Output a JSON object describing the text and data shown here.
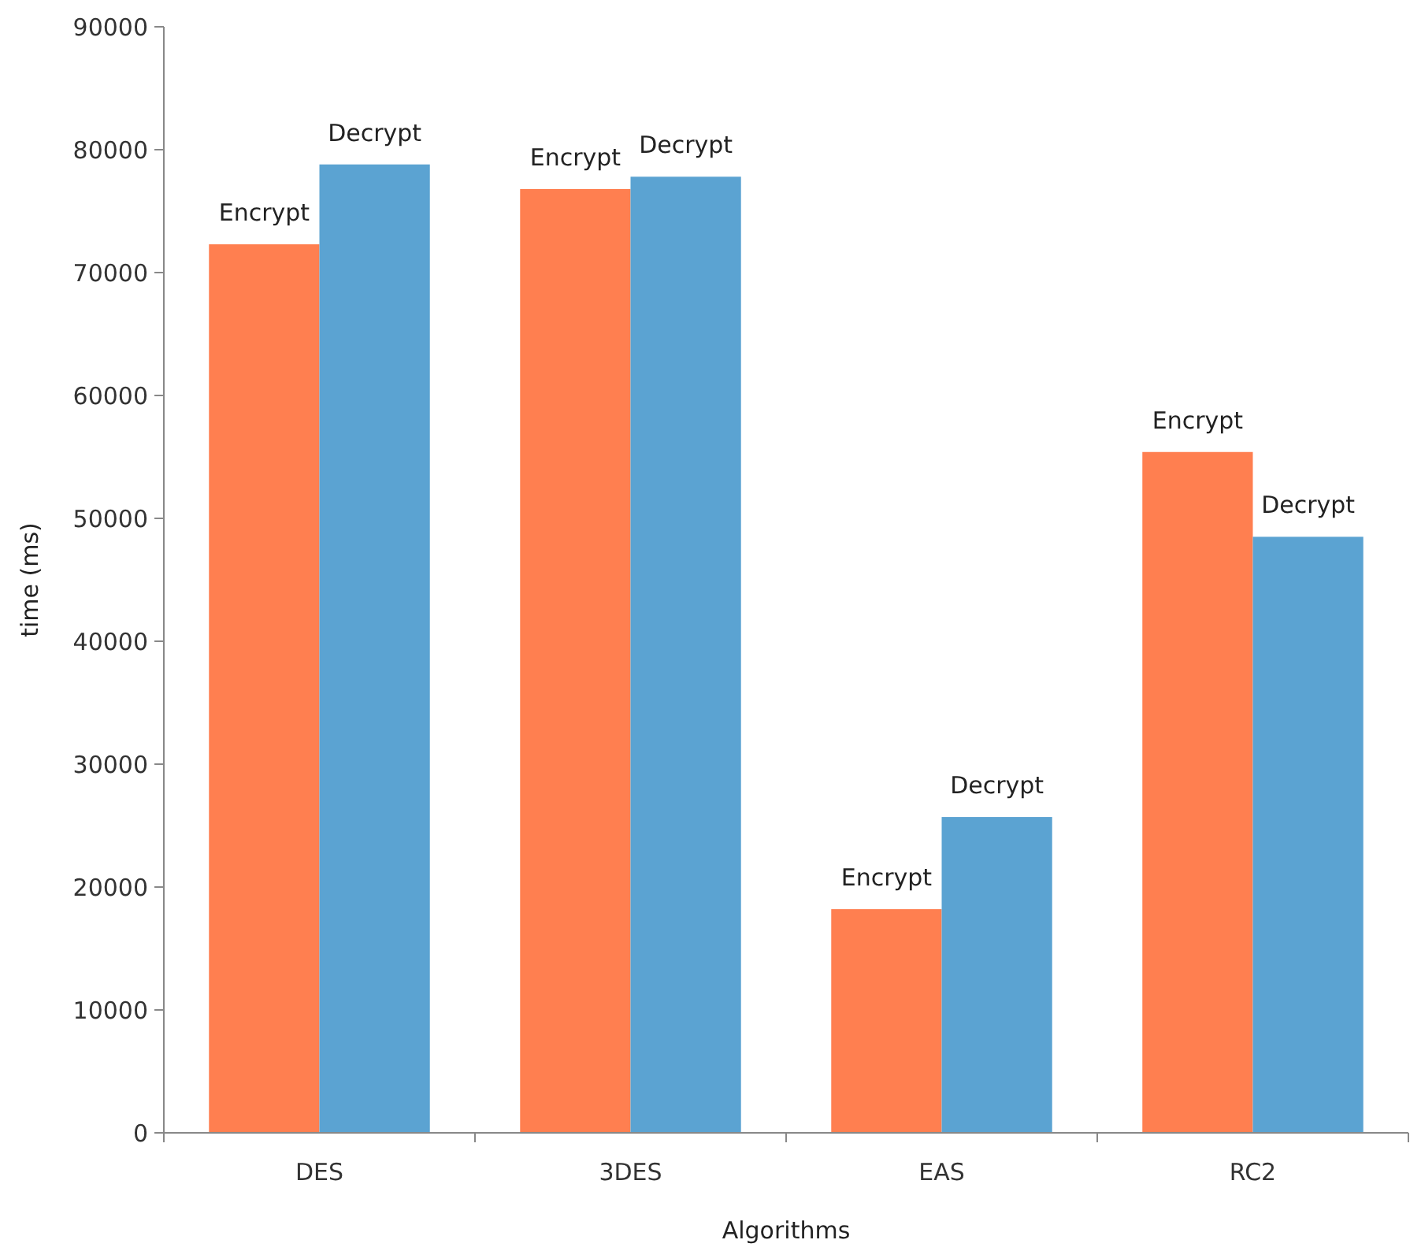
{
  "chart_data": {
    "type": "bar",
    "xlabel": "Algorithms",
    "ylabel": "time (ms)",
    "categories": [
      "DES",
      "3DES",
      "EAS",
      "RC2"
    ],
    "series": [
      {
        "name": "Encrypt",
        "color": "#ff7f50",
        "values": [
          72300,
          76800,
          18200,
          55400
        ]
      },
      {
        "name": "Decrypt",
        "color": "#5ba3d2",
        "values": [
          78800,
          77800,
          25700,
          48500
        ]
      }
    ],
    "ylim": [
      0,
      90000
    ],
    "yticks": [
      0,
      10000,
      20000,
      30000,
      40000,
      50000,
      60000,
      70000,
      80000,
      90000
    ],
    "grid": false
  }
}
